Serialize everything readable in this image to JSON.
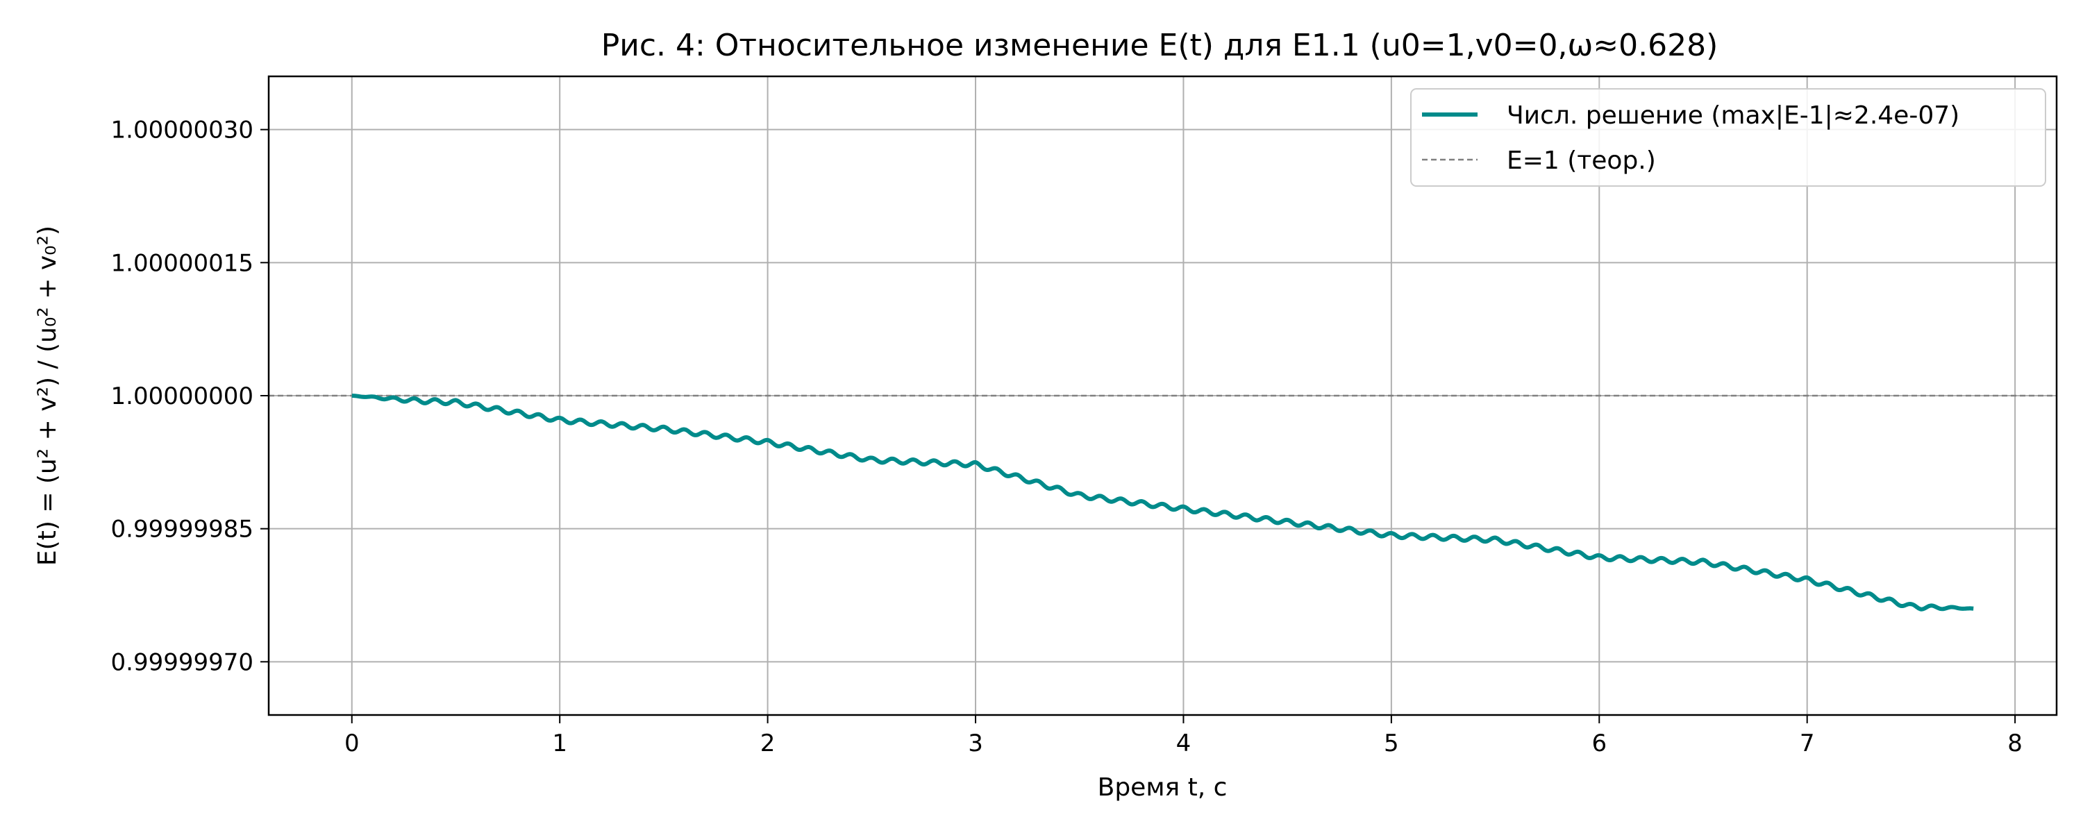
{
  "chart_data": {
    "type": "line",
    "title": "Рис. 4: Относительное изменение E(t) для E1.1 (u0=1,v0=0,ω≈0.628)",
    "xlabel": "Время t, c",
    "ylabel": "E(t) = (u² + v²) / (u₀² + v₀²)",
    "xlim": [
      -0.4,
      8.2
    ],
    "ylim": [
      0.99999964,
      1.00000036
    ],
    "x_ticks": [
      0,
      1,
      2,
      3,
      4,
      5,
      6,
      7,
      8
    ],
    "x_tick_labels": [
      "0",
      "1",
      "2",
      "3",
      "4",
      "5",
      "6",
      "7",
      "8"
    ],
    "y_ticks": [
      0.9999997,
      0.99999985,
      1.0,
      1.00000015,
      1.0000003
    ],
    "y_tick_labels": [
      "0.99999970",
      "0.99999985",
      "1.00000000",
      "1.00000015",
      "1.00000030"
    ],
    "grid": true,
    "legend_position": "top-right",
    "series": [
      {
        "name": "Числ. решение (max|E-1|≈2.4e-07)",
        "color": "#008B8B",
        "style": "solid",
        "x": [
          0,
          0.5,
          1.0,
          1.5,
          2.0,
          2.5,
          3.0,
          3.5,
          4.0,
          4.5,
          5.0,
          5.5,
          6.0,
          6.5,
          7.0,
          7.5,
          7.8
        ],
        "y": [
          1.0,
          0.999999995,
          0.999999975,
          0.999999965,
          0.99999995,
          0.99999993,
          0.999999925,
          0.99999989,
          0.999999875,
          0.99999986,
          0.999999845,
          0.99999984,
          0.99999982,
          0.999999815,
          0.999999795,
          0.999999765,
          0.99999976
        ],
        "oscillation_amplitude": 5e-09,
        "oscillation_period": 0.1
      },
      {
        "name": "E=1 (теор.)",
        "color": "#808080",
        "style": "dashed",
        "x": [
          -0.4,
          8.2
        ],
        "y": [
          1.0,
          1.0
        ]
      }
    ]
  }
}
